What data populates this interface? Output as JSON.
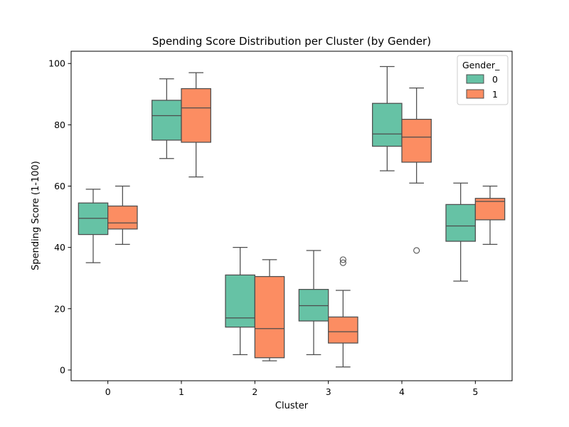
{
  "chart_data": {
    "type": "box",
    "title": "Spending Score Distribution per Cluster (by Gender)",
    "xlabel": "Cluster",
    "ylabel": "Spending Score (1-100)",
    "categories": [
      "0",
      "1",
      "2",
      "3",
      "4",
      "5"
    ],
    "ylim": [
      -3.5,
      104
    ],
    "yticks": [
      0,
      20,
      40,
      60,
      80,
      100
    ],
    "grid": false,
    "legend": {
      "title": "Gender_",
      "position": "top-right"
    },
    "series": [
      {
        "name": "0",
        "color": "#66c2a5",
        "boxes": [
          {
            "category": "0",
            "whisker_low": 35,
            "q1": 44.2,
            "median": 49.5,
            "q3": 54.5,
            "whisker_high": 59,
            "outliers": []
          },
          {
            "category": "1",
            "whisker_low": 69,
            "q1": 75,
            "median": 83,
            "q3": 88,
            "whisker_high": 95,
            "outliers": []
          },
          {
            "category": "2",
            "whisker_low": 5,
            "q1": 14,
            "median": 17,
            "q3": 31,
            "whisker_high": 40,
            "outliers": []
          },
          {
            "category": "3",
            "whisker_low": 5,
            "q1": 16,
            "median": 21,
            "q3": 26.3,
            "whisker_high": 39,
            "outliers": []
          },
          {
            "category": "4",
            "whisker_low": 65,
            "q1": 73,
            "median": 77,
            "q3": 87,
            "whisker_high": 99,
            "outliers": []
          },
          {
            "category": "5",
            "whisker_low": 29,
            "q1": 42,
            "median": 47,
            "q3": 54,
            "whisker_high": 61,
            "outliers": []
          }
        ]
      },
      {
        "name": "1",
        "color": "#fc8d62",
        "boxes": [
          {
            "category": "0",
            "whisker_low": 41,
            "q1": 46,
            "median": 48,
            "q3": 53.5,
            "whisker_high": 60,
            "outliers": []
          },
          {
            "category": "1",
            "whisker_low": 63,
            "q1": 74.3,
            "median": 85.5,
            "q3": 91.8,
            "whisker_high": 97,
            "outliers": []
          },
          {
            "category": "2",
            "whisker_low": 3,
            "q1": 4,
            "median": 13.5,
            "q3": 30.5,
            "whisker_high": 36,
            "outliers": []
          },
          {
            "category": "3",
            "whisker_low": 1,
            "q1": 8.8,
            "median": 12.5,
            "q3": 17.3,
            "whisker_high": 26,
            "outliers": [
              35,
              36
            ]
          },
          {
            "category": "4",
            "whisker_low": 61,
            "q1": 67.8,
            "median": 76,
            "q3": 81.8,
            "whisker_high": 92,
            "outliers": [
              39
            ]
          },
          {
            "category": "5",
            "whisker_low": 41,
            "q1": 49,
            "median": 55,
            "q3": 56,
            "whisker_high": 60,
            "outliers": []
          }
        ]
      }
    ]
  }
}
